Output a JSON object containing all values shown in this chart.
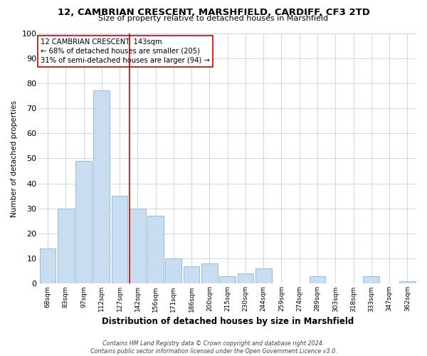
{
  "title": "12, CAMBRIAN CRESCENT, MARSHFIELD, CARDIFF, CF3 2TD",
  "subtitle": "Size of property relative to detached houses in Marshfield",
  "xlabel": "Distribution of detached houses by size in Marshfield",
  "ylabel": "Number of detached properties",
  "bar_labels": [
    "68sqm",
    "83sqm",
    "97sqm",
    "112sqm",
    "127sqm",
    "142sqm",
    "156sqm",
    "171sqm",
    "186sqm",
    "200sqm",
    "215sqm",
    "230sqm",
    "244sqm",
    "259sqm",
    "274sqm",
    "289sqm",
    "303sqm",
    "318sqm",
    "333sqm",
    "347sqm",
    "362sqm"
  ],
  "bar_values": [
    14,
    30,
    49,
    77,
    35,
    30,
    27,
    10,
    7,
    8,
    3,
    4,
    6,
    0,
    0,
    3,
    0,
    0,
    3,
    0,
    1
  ],
  "bar_color": "#c9ddf0",
  "bar_edge_color": "#8ab4d8",
  "vline_color": "#cc0000",
  "ylim": [
    0,
    100
  ],
  "yticks": [
    0,
    10,
    20,
    30,
    40,
    50,
    60,
    70,
    80,
    90,
    100
  ],
  "annotation_line1": "12 CAMBRIAN CRESCENT: 143sqm",
  "annotation_line2": "← 68% of detached houses are smaller (205)",
  "annotation_line3": "31% of semi-detached houses are larger (94) →",
  "footer_line1": "Contains HM Land Registry data © Crown copyright and database right 2024.",
  "footer_line2": "Contains public sector information licensed under the Open Government Licence v3.0.",
  "background_color": "#ffffff",
  "grid_color": "#c8d8e8",
  "vline_bar_index": 5
}
